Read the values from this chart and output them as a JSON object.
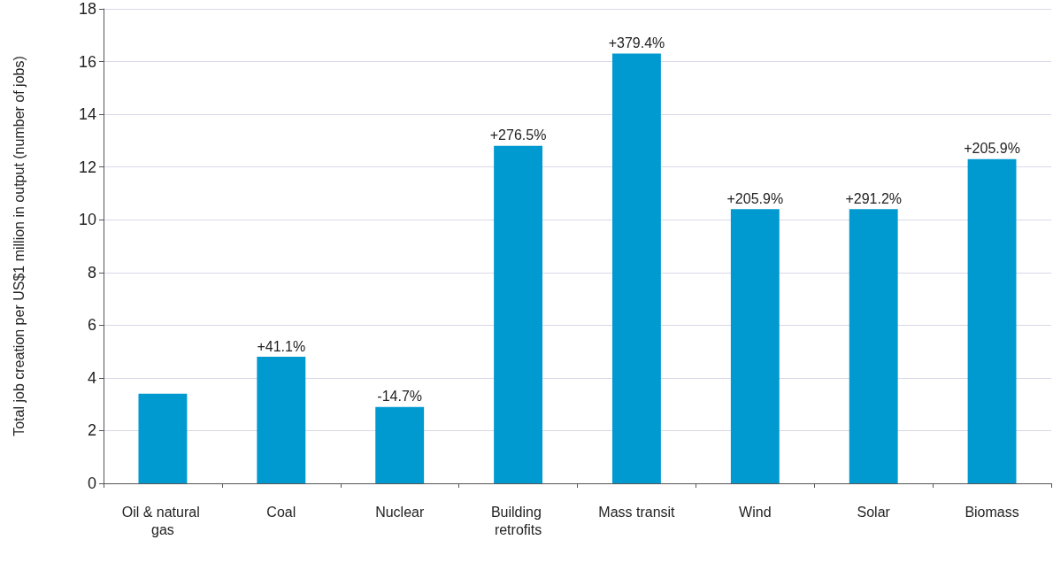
{
  "chart_data": {
    "type": "bar",
    "ylabel": "Total job creation per US$1 million in output (number of jobs)",
    "categories": [
      "Oil & natural gas",
      "Coal",
      "Nuclear",
      "Building retrofits",
      "Mass transit",
      "Wind",
      "Solar",
      "Biomass"
    ],
    "values": [
      3.4,
      4.8,
      2.9,
      12.8,
      16.3,
      10.4,
      10.4,
      12.3
    ],
    "annotations": [
      {
        "text": "+41.1%",
        "x": "Coal",
        "y": 4.8
      },
      {
        "text": "-14.7%",
        "x": "Nuclear",
        "y": 2.9
      },
      {
        "text": "+276.5%",
        "x": "Building retrofits",
        "y": 12.8
      },
      {
        "text": "+379.4%",
        "x": "Mass transit",
        "y": 16.3
      },
      {
        "text": "+205.9%",
        "x": "Wind",
        "y": 10.4
      },
      {
        "text": "+291.2%",
        "x": "Solar",
        "y": 10.4
      },
      {
        "text": "+205.9%",
        "x": "Biomass",
        "y": 12.3
      }
    ],
    "color": "#0099d0",
    "ylim": [
      0,
      18
    ],
    "yticks": [
      0,
      2,
      4,
      6,
      8,
      10,
      12,
      14,
      16,
      18
    ],
    "grid": "y"
  }
}
